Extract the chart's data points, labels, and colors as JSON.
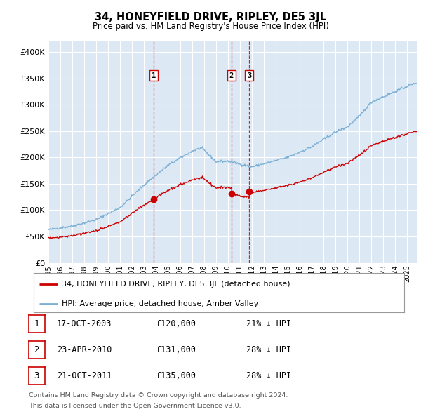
{
  "title": "34, HONEYFIELD DRIVE, RIPLEY, DE5 3JL",
  "subtitle": "Price paid vs. HM Land Registry's House Price Index (HPI)",
  "ytick_values": [
    0,
    50000,
    100000,
    150000,
    200000,
    250000,
    300000,
    350000,
    400000
  ],
  "ylim": [
    0,
    420000
  ],
  "xlim_start": 1995.0,
  "xlim_end": 2025.8,
  "plot_bg_color": "#dce9f5",
  "grid_color": "#ffffff",
  "sale_color": "#cc0000",
  "hpi_color": "#7bafd4",
  "vline_color": "#cc0000",
  "sale_label": "34, HONEYFIELD DRIVE, RIPLEY, DE5 3JL (detached house)",
  "hpi_label": "HPI: Average price, detached house, Amber Valley",
  "transactions": [
    {
      "num": 1,
      "date": "17-OCT-2003",
      "price": 120000,
      "pct": "21%",
      "x": 2003.79
    },
    {
      "num": 2,
      "date": "23-APR-2010",
      "price": 131000,
      "pct": "28%",
      "x": 2010.31
    },
    {
      "num": 3,
      "date": "21-OCT-2011",
      "price": 135000,
      "pct": "28%",
      "x": 2011.79
    }
  ],
  "footer1": "Contains HM Land Registry data © Crown copyright and database right 2024.",
  "footer2": "This data is licensed under the Open Government Licence v3.0.",
  "xtick_years": [
    1995,
    1996,
    1997,
    1998,
    1999,
    2000,
    2001,
    2002,
    2003,
    2004,
    2005,
    2006,
    2007,
    2008,
    2009,
    2010,
    2011,
    2012,
    2013,
    2014,
    2015,
    2016,
    2017,
    2018,
    2019,
    2020,
    2021,
    2022,
    2023,
    2024,
    2025
  ]
}
